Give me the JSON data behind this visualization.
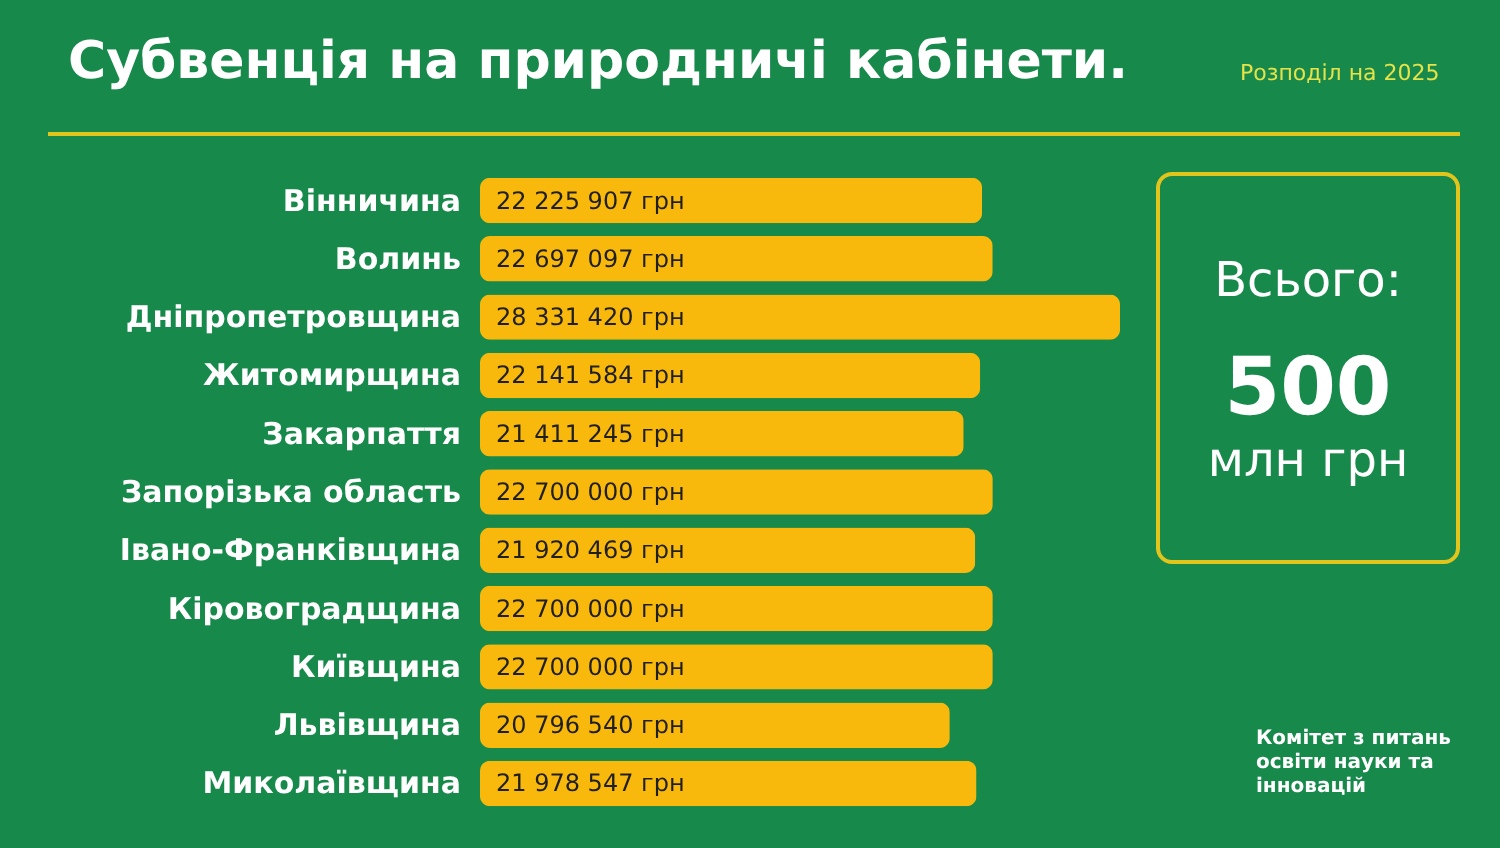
{
  "chart_data": {
    "type": "bar",
    "orientation": "horizontal",
    "title": "Субвенція на природничі кабінети.",
    "subtitle": "Розподіл на 2025",
    "categories": [
      "Вінничина",
      "Волинь",
      "Дніпропетровщина",
      "Житомирщина",
      "Закарпаття",
      "Запорізька область",
      "Івано-Франківщина",
      "Кіровоградщина",
      "Київщина",
      "Львівщина",
      "Миколаївщина"
    ],
    "values": [
      22225907,
      22697097,
      28331420,
      22141584,
      21411245,
      22700000,
      21920469,
      22700000,
      22700000,
      20796540,
      21978547
    ],
    "value_labels": [
      "22 225 907 грн",
      "22 697 097 грн",
      "28 331 420 грн",
      "22 141 584 грн",
      "21 411 245 грн",
      "22 700 000 грн",
      "21 920 469 грн",
      "22 700 000 грн",
      "22 700 000 грн",
      "20 796 540 грн",
      "21 978 547 грн"
    ],
    "color": "#f8b90c",
    "annotations": [
      "Всього:",
      "500",
      "млн грн",
      "Комітет з питань освіти науки та інновацій"
    ]
  }
}
